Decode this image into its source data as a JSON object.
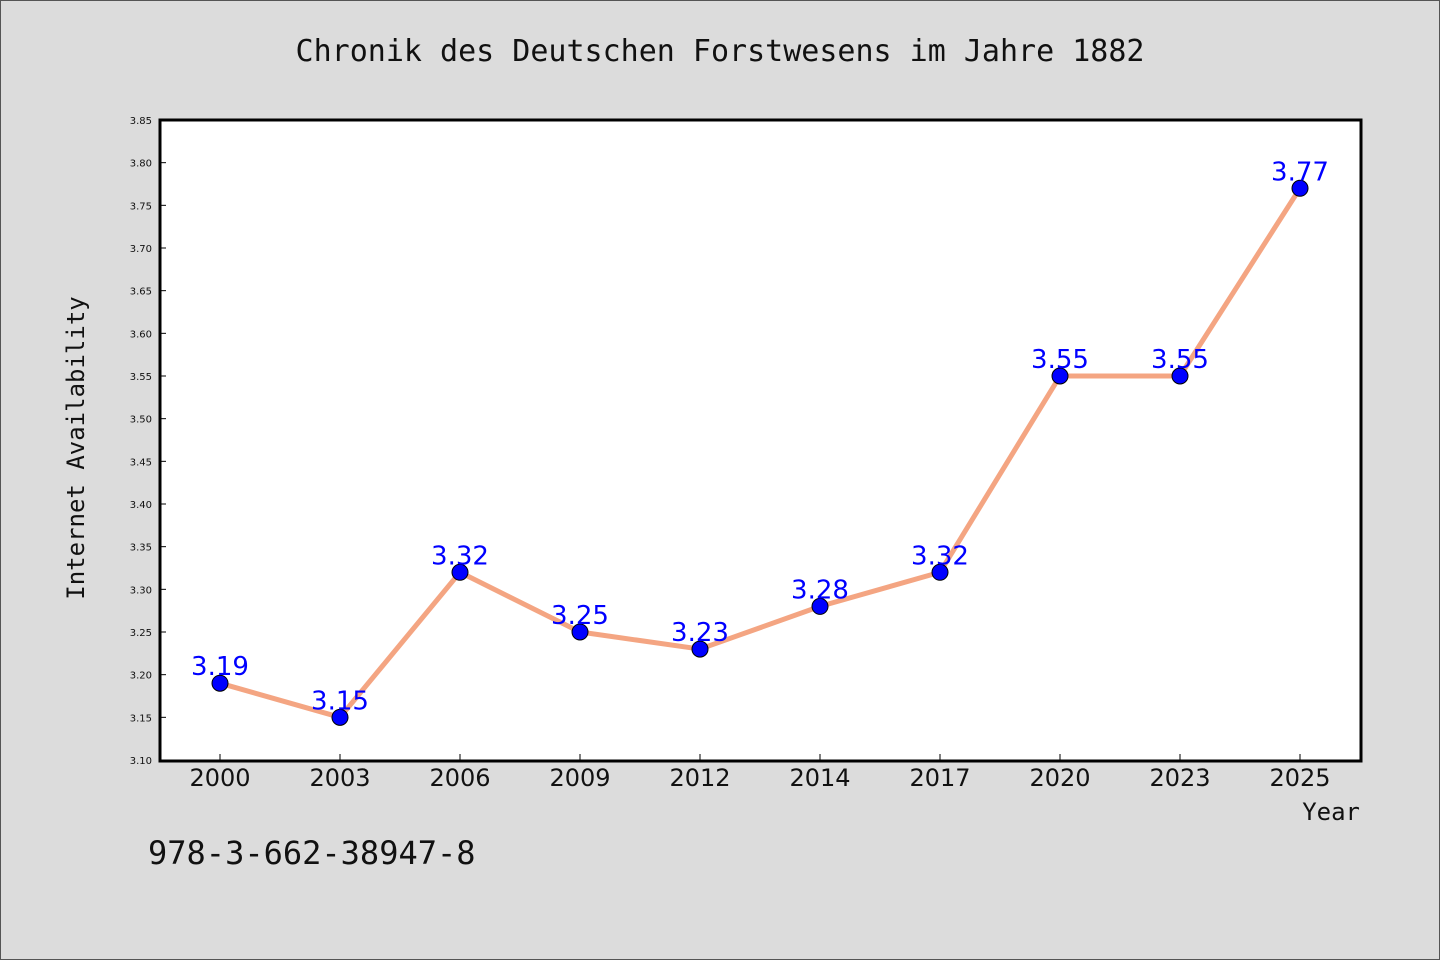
{
  "title": "Chronik des Deutschen Forstwesens im Jahre 1882",
  "isbn": "978-3-662-38947-8",
  "colors": {
    "line": "#f4a582",
    "marker": "#0000ff",
    "label": "#0000ff",
    "background": "#dcdcdc",
    "plot_background": "#ffffff"
  },
  "chart_data": {
    "type": "line",
    "categories": [
      "2000",
      "2003",
      "2006",
      "2009",
      "2012",
      "2014",
      "2017",
      "2020",
      "2023",
      "2025"
    ],
    "series": [
      {
        "values": [
          3.19,
          3.15,
          3.32,
          3.25,
          3.23,
          3.28,
          3.32,
          3.55,
          3.55,
          3.77
        ]
      }
    ],
    "data_labels": [
      "3.19",
      "3.15",
      "3.32",
      "3.25",
      "3.23",
      "3.28",
      "3.32",
      "3.55",
      "3.55",
      "3.77"
    ],
    "xlabel": "Year",
    "ylabel": "Internet Availability",
    "ylim": [
      3.1,
      3.85
    ],
    "yticks": [
      "3.10",
      "3.15",
      "3.20",
      "3.25",
      "3.30",
      "3.35",
      "3.40",
      "3.45",
      "3.50",
      "3.55",
      "3.60",
      "3.65",
      "3.70",
      "3.75",
      "3.80",
      "3.85"
    ],
    "grid": false,
    "legend": "none"
  }
}
